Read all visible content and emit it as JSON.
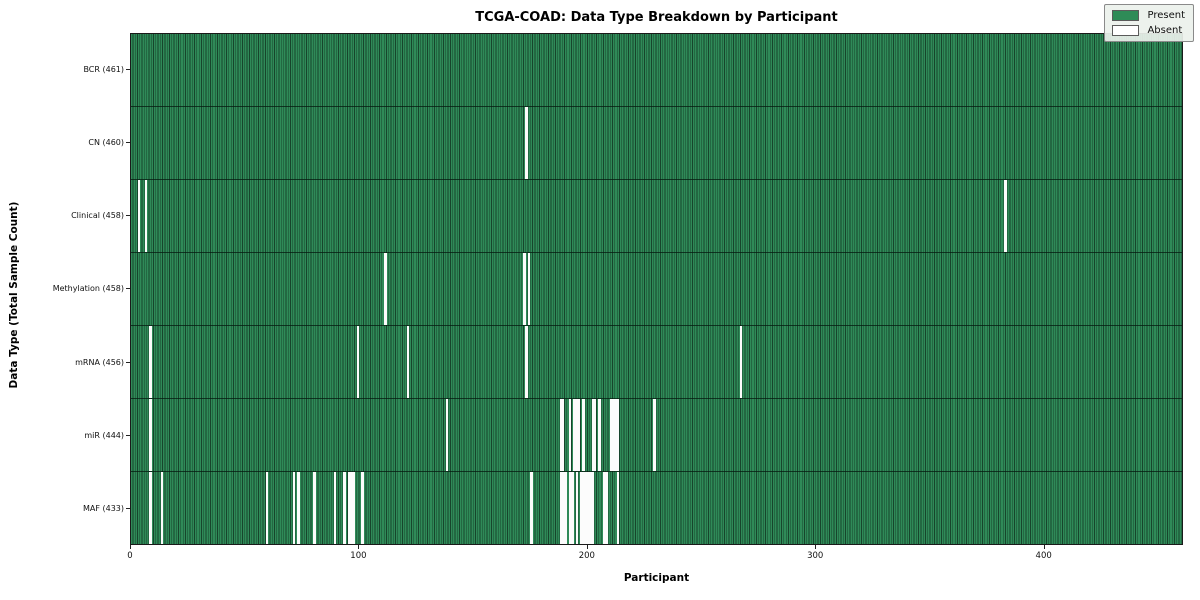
{
  "chart_data": {
    "type": "heatmap",
    "title": "TCGA-COAD: Data Type Breakdown by Participant",
    "xlabel": "Participant",
    "ylabel": "Data Type (Total Sample Count)",
    "x_ticks": [
      0,
      100,
      200,
      300,
      400
    ],
    "x_range": [
      0,
      461
    ],
    "n_participants": 461,
    "grid": false,
    "legend_position": "upper right",
    "legend": [
      {
        "label": "Present",
        "color": "#2e8b57"
      },
      {
        "label": "Absent",
        "color": "#ffffff"
      }
    ],
    "colors": {
      "present_fill": "#2e8b57",
      "bar_edge": "#17452c",
      "absent_fill": "#fcfcfc"
    },
    "rows": [
      {
        "label": "BCR (461)",
        "data_type": "BCR",
        "present_count": 461,
        "absent_participants": []
      },
      {
        "label": "CN (460)",
        "data_type": "CN",
        "present_count": 460,
        "absent_participants": [
          173
        ]
      },
      {
        "label": "Clinical (458)",
        "data_type": "Clinical",
        "present_count": 458,
        "absent_participants": [
          3,
          6,
          383
        ]
      },
      {
        "label": "Methylation (458)",
        "data_type": "Methylation",
        "present_count": 458,
        "absent_participants": [
          111,
          172,
          174
        ]
      },
      {
        "label": "mRNA (456)",
        "data_type": "mRNA",
        "present_count": 456,
        "absent_participants": [
          8,
          99,
          121,
          173,
          267
        ]
      },
      {
        "label": "miR (444)",
        "data_type": "miR",
        "present_count": 444,
        "absent_participants": [
          8,
          138,
          188,
          189,
          192,
          194,
          195,
          196,
          198,
          202,
          203,
          205,
          210,
          211,
          212,
          213,
          229
        ]
      },
      {
        "label": "MAF (433)",
        "data_type": "MAF",
        "present_count": 433,
        "absent_participants": [
          8,
          13,
          59,
          71,
          73,
          80,
          89,
          93,
          95,
          96,
          97,
          101,
          175,
          188,
          189,
          190,
          192,
          193,
          195,
          197,
          198,
          199,
          200,
          201,
          202,
          207,
          208,
          213
        ]
      }
    ]
  }
}
